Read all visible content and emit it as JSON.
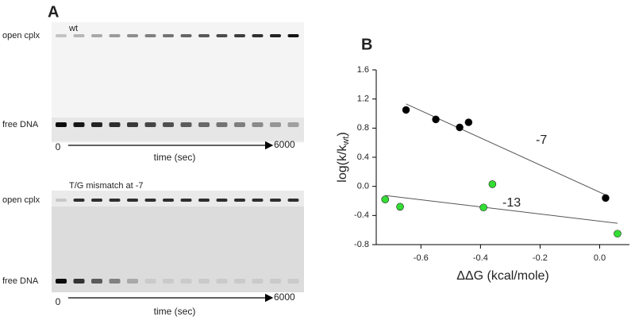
{
  "panel_a": {
    "label": "A",
    "gels": [
      {
        "title": "wt",
        "top_label": "open cplx",
        "bottom_label": "free DNA",
        "start": "0",
        "axis_label": "time (sec)",
        "end": "6000"
      },
      {
        "title": "T/G mismatch at -7",
        "top_label": "open cplx",
        "bottom_label": "free DNA",
        "start": "0",
        "axis_label": "time (sec)",
        "end": "6000"
      }
    ]
  },
  "chart_data": {
    "type": "scatter",
    "panel_label": "B",
    "xlabel": "ΔΔG (kcal/mole)",
    "ylabel": {
      "main": "log(k/k",
      "sub": "wt",
      "end": ")"
    },
    "xlim": [
      -0.75,
      0.1
    ],
    "ylim": [
      -0.8,
      1.6
    ],
    "xticks": [
      -0.6,
      -0.4,
      -0.2,
      {
        "value": 0,
        "label": "0.0"
      }
    ],
    "yticks": [
      1.6,
      1.2,
      0.8,
      0.4,
      {
        "value": 0,
        "label": "0.0"
      },
      -0.4,
      -0.8
    ],
    "series": [
      {
        "name": "-7",
        "color": "#000000",
        "x": [
          -0.65,
          -0.55,
          -0.47,
          -0.44,
          0.02
        ],
        "values": [
          1.05,
          0.92,
          0.81,
          0.88,
          -0.16
        ]
      },
      {
        "name": "-13",
        "color": "#33dd33",
        "x": [
          -0.72,
          -0.67,
          -0.39,
          -0.36,
          0.06
        ],
        "values": [
          -0.18,
          -0.28,
          -0.29,
          0.03,
          -0.65
        ]
      }
    ]
  }
}
